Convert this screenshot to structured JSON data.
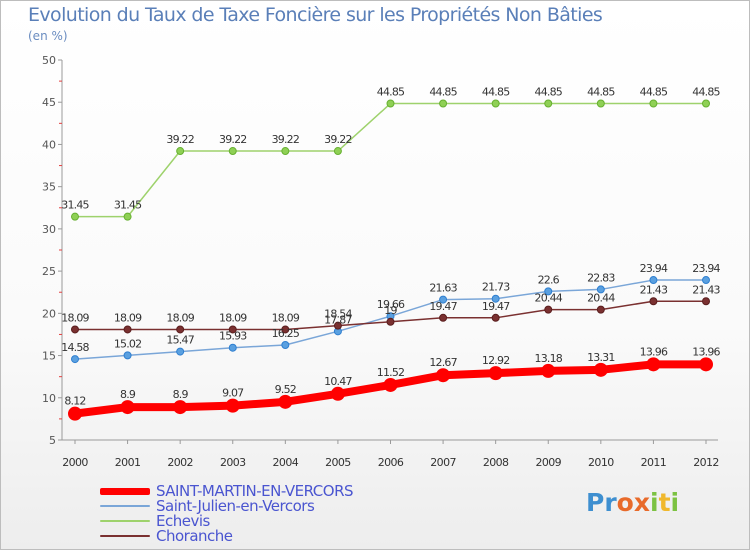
{
  "header": {
    "title": "Evolution du Taux de Taxe Foncière sur les Propriétés Non Bâties",
    "unit": "(en %)"
  },
  "logo": {
    "letters": [
      "P",
      "r",
      "o",
      "x",
      "i",
      "t",
      "i"
    ],
    "colors": [
      "#3e8fd0",
      "#3e8fd0",
      "#e86a2a",
      "#e86a2a",
      "#7cc242",
      "#f0b82d",
      "#7cc242"
    ]
  },
  "chart_data": {
    "type": "line",
    "title": "Evolution du Taux de Taxe Foncière sur les Propriétés Non Bâties",
    "ylabel": "(en %)",
    "xlabel": "",
    "x": [
      "2000",
      "2001",
      "2002",
      "2003",
      "2004",
      "2005",
      "2006",
      "2007",
      "2008",
      "2009",
      "2010",
      "2011",
      "2012"
    ],
    "ylim": [
      5,
      50
    ],
    "yticks": [
      5,
      10,
      15,
      20,
      25,
      30,
      35,
      40,
      45,
      50
    ],
    "grid": false,
    "legend_position": "bottom-left",
    "series": [
      {
        "name": "SAINT-MARTIN-EN-VERCORS",
        "color": "#ff0000",
        "values": [
          8.12,
          8.9,
          8.9,
          9.07,
          9.52,
          10.47,
          11.52,
          12.67,
          12.92,
          13.18,
          13.31,
          13.96,
          13.96
        ],
        "labels": [
          "8.12",
          "8.9",
          "8.9",
          "9.07",
          "9.52",
          "10.47",
          "11.52",
          "12.67",
          "12.92",
          "13.18",
          "13.31",
          "13.96",
          "13.96"
        ]
      },
      {
        "name": "Saint-Julien-en-Vercors",
        "color": "#7aa6d8",
        "values": [
          14.58,
          15.02,
          15.47,
          15.93,
          16.25,
          17.87,
          19.66,
          21.63,
          21.73,
          22.6,
          22.83,
          23.94,
          23.94
        ],
        "labels": [
          "14.58",
          "15.02",
          "15.47",
          "15.93",
          "16.25",
          "17.87",
          "19.66",
          "21.63",
          "21.73",
          "22.6",
          "22.83",
          "23.94",
          "23.94"
        ]
      },
      {
        "name": "Echevis",
        "color": "#9ed26c",
        "values": [
          31.45,
          31.45,
          39.22,
          39.22,
          39.22,
          39.22,
          44.85,
          44.85,
          44.85,
          44.85,
          44.85,
          44.85,
          44.85
        ],
        "labels": [
          "31.45",
          "31.45",
          "39.22",
          "39.22",
          "39.22",
          "39.22",
          "44.85",
          "44.85",
          "44.85",
          "44.85",
          "44.85",
          "44.85",
          "44.85"
        ]
      },
      {
        "name": "Choranche",
        "color": "#7a3030",
        "values": [
          18.09,
          18.09,
          18.09,
          18.09,
          18.09,
          18.54,
          19.0,
          19.47,
          19.47,
          20.44,
          20.44,
          21.43,
          21.43
        ],
        "labels": [
          "18.09",
          "18.09",
          "18.09",
          "18.09",
          "18.09",
          "18.54",
          "19",
          "19.47",
          "19.47",
          "20.44",
          "20.44",
          "21.43",
          "21.43"
        ]
      }
    ]
  }
}
